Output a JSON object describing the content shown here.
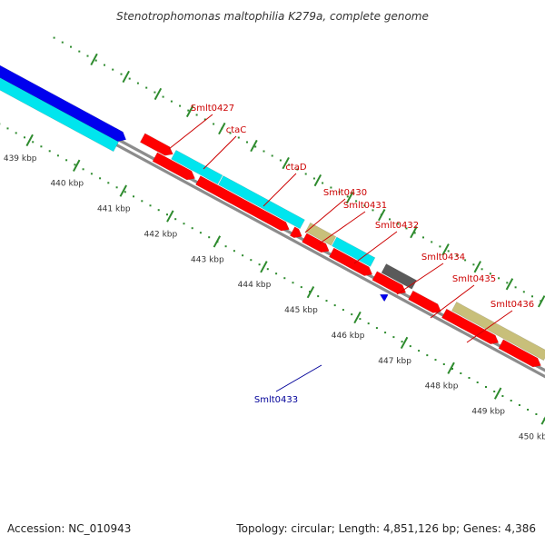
{
  "title": "Stenotrophomonas maltophilia K279a, complete genome",
  "footer": {
    "accession": "Accession: NC_010943",
    "summary": "Topology: circular; Length: 4,851,126 bp; Genes: 4,386"
  },
  "colors": {
    "backbone": "#8c8c8c",
    "tick_marks": "#2e8b2e",
    "label_forward": "#cc0000",
    "label_reverse": "#000099",
    "cds_red": "#ff0000",
    "cds_cyan": "#00e5ee",
    "cds_blue": "#0000ee",
    "cds_khaki": "#c8bf7a",
    "cds_gray": "#5a5a5a",
    "cds_light_gray": "#bdbdbd"
  },
  "ticks": [
    {
      "label": "439 kbp"
    },
    {
      "label": "440 kbp"
    },
    {
      "label": "441 kbp"
    },
    {
      "label": "442 kbp"
    },
    {
      "label": "443 kbp"
    },
    {
      "label": "444 kbp"
    },
    {
      "label": "445 kbp"
    },
    {
      "label": "446 kbp"
    },
    {
      "label": "447 kbp"
    },
    {
      "label": "448 kbp"
    },
    {
      "label": "449 kbp"
    },
    {
      "label": "450 kbp"
    }
  ],
  "gene_labels": [
    {
      "text": "Smlt0427",
      "strand": "forward"
    },
    {
      "text": "ctaC",
      "strand": "forward"
    },
    {
      "text": "ctaD",
      "strand": "forward"
    },
    {
      "text": "Smlt0430",
      "strand": "forward"
    },
    {
      "text": "Smlt0431",
      "strand": "forward"
    },
    {
      "text": "Smlt0432",
      "strand": "forward"
    },
    {
      "text": "Smlt0433",
      "strand": "reverse"
    },
    {
      "text": "Smlt0434",
      "strand": "forward"
    },
    {
      "text": "Smlt0435",
      "strand": "forward"
    },
    {
      "text": "Smlt0436",
      "strand": "forward"
    }
  ]
}
